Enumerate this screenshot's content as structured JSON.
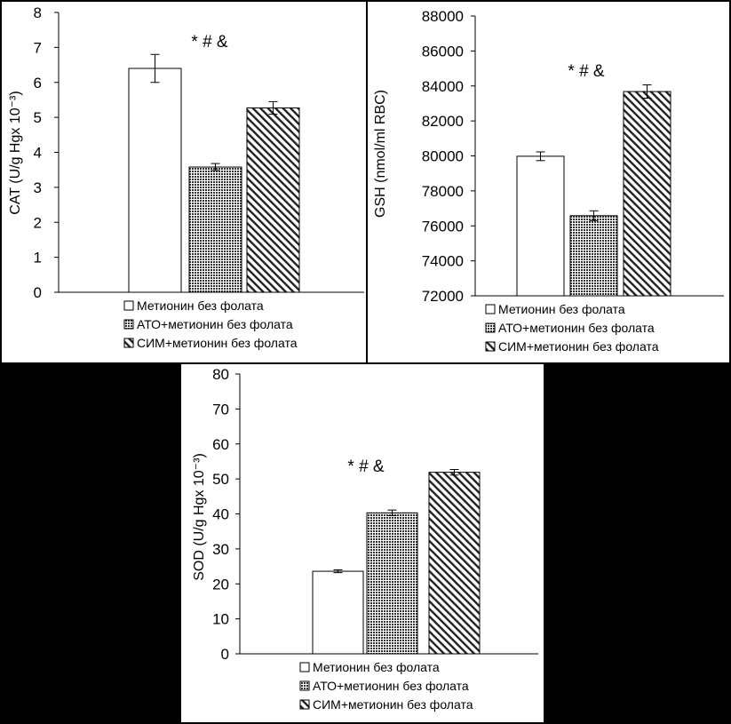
{
  "colors": {
    "background": "#000000",
    "panel": "#ffffff",
    "bar_outline": "#000000"
  },
  "legend": [
    {
      "label": "Метионин без фолата",
      "pattern": "white"
    },
    {
      "label": "АТО+метионин без фолата",
      "pattern": "dots"
    },
    {
      "label": "СИМ+метионин без фолата",
      "pattern": "hatch"
    }
  ],
  "chart_data": [
    {
      "id": "cat",
      "type": "bar",
      "ylabel": "CAT (U/g Hgx 10⁻³)",
      "ylim": [
        0,
        8
      ],
      "yticks": [
        "0",
        "1",
        "2",
        "3",
        "4",
        "5",
        "6",
        "7",
        "8"
      ],
      "series": [
        {
          "name": "Метионин без фолата",
          "value": 6.4,
          "error": 0.4
        },
        {
          "name": "АТО+метионин без фолата",
          "value": 3.58,
          "error": 0.1
        },
        {
          "name": "СИМ+метионин без фолата",
          "value": 5.27,
          "error": 0.18
        }
      ],
      "annotation": "*  # &",
      "grid": false,
      "legend_position": "bottom"
    },
    {
      "id": "gsh",
      "type": "bar",
      "ylabel": "GSH (nmol/ml RBC)",
      "ylim": [
        72000,
        88000
      ],
      "yticks": [
        "72000",
        "74000",
        "76000",
        "78000",
        "80000",
        "82000",
        "84000",
        "86000",
        "88000"
      ],
      "series": [
        {
          "name": "Метионин без фолата",
          "value": 79980,
          "error": 250
        },
        {
          "name": "АТО+метионин без фолата",
          "value": 76580,
          "error": 280
        },
        {
          "name": "СИМ+метионин без фолата",
          "value": 83680,
          "error": 380
        }
      ],
      "annotation": "*  # &",
      "grid": false,
      "legend_position": "bottom"
    },
    {
      "id": "sod",
      "type": "bar",
      "ylabel": "SOD (U/g Hgx 10⁻³)",
      "ylim": [
        0,
        80
      ],
      "yticks": [
        "0",
        "10",
        "20",
        "30",
        "40",
        "50",
        "60",
        "70",
        "80"
      ],
      "series": [
        {
          "name": "Метионин без фолата",
          "value": 23.6,
          "error": 0.4
        },
        {
          "name": "АТО+метионин без фолата",
          "value": 40.3,
          "error": 0.8
        },
        {
          "name": "СИМ+метионин без фолата",
          "value": 51.9,
          "error": 0.8
        }
      ],
      "annotation": "*  # &",
      "grid": false,
      "legend_position": "bottom"
    }
  ]
}
